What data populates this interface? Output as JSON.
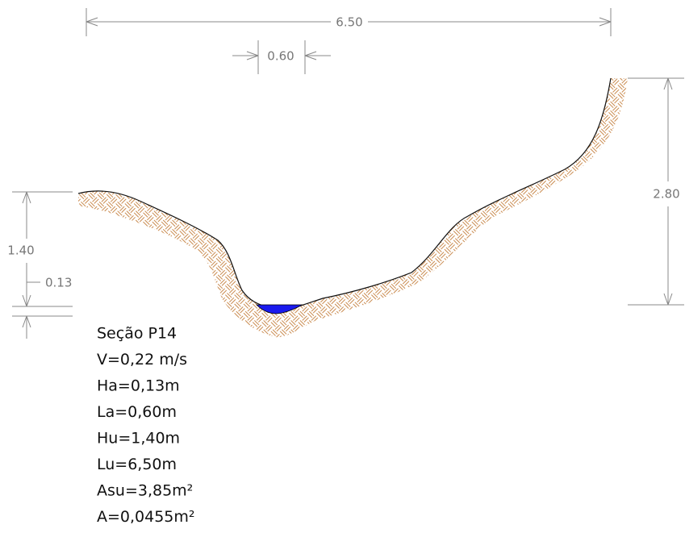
{
  "section": {
    "dimensions": {
      "total_width": "6.50",
      "water_width": "0.60",
      "right_height": "2.80",
      "left_height": "1.40",
      "water_depth": "0.13"
    },
    "notes": [
      "Seção P14",
      "V=0,22 m/s",
      "Ha=0,13m",
      "La=0,60m",
      "Hu=1,40m",
      "Lu=6,50m",
      "Asu=3,85m²",
      "A=0,0455m²"
    ]
  }
}
